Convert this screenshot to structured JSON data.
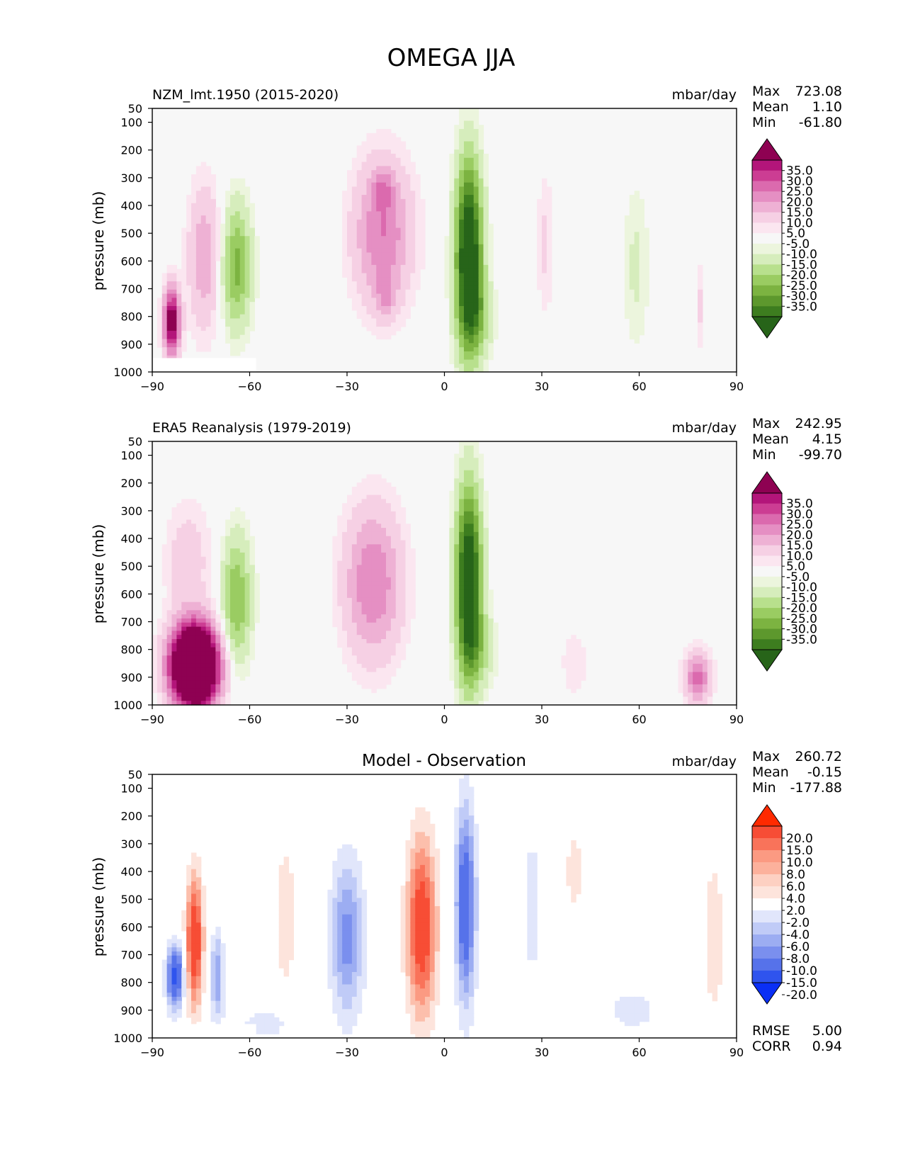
{
  "figure_title": "OMEGA JJA",
  "colors": {
    "seq_pos": [
      "#f7f7f7",
      "#fbe6f0",
      "#f6d0e4",
      "#eeb1d4",
      "#e58fc3",
      "#db6aae",
      "#cc3d93",
      "#b3157a",
      "#8e0152"
    ],
    "seq_neg": [
      "#f7f7f7",
      "#ecf5dd",
      "#d6edbc",
      "#b8e08d",
      "#9acc62",
      "#7cb341",
      "#5d982d",
      "#3d7d1f",
      "#276419"
    ],
    "diff_pos": [
      "#ffffff",
      "#fde4dc",
      "#fcbfac",
      "#fb9a82",
      "#f9735a",
      "#f74d35",
      "#f52d14"
    ],
    "diff_neg": [
      "#ffffff",
      "#e1e6fb",
      "#c0cbf7",
      "#9cadf2",
      "#7a8fee",
      "#5672ea",
      "#2f54ee",
      "#0a2ff5"
    ]
  },
  "chart_data": [
    {
      "type": "heatmap",
      "title": "NZM_lmt.1950 (2015-2020)",
      "units": "mbar/day",
      "xlabel": "",
      "ylabel": "pressure (mb)",
      "x_ticks": [
        "−90",
        "−60",
        "−30",
        "0",
        "30",
        "60",
        "90"
      ],
      "x_tick_values": [
        -90,
        -60,
        -30,
        0,
        30,
        60,
        90
      ],
      "y_ticks": [
        "50",
        "100",
        "200",
        "300",
        "400",
        "500",
        "600",
        "700",
        "800",
        "900",
        "1000"
      ],
      "y_tick_values": [
        50,
        100,
        200,
        300,
        400,
        500,
        600,
        700,
        800,
        900,
        1000
      ],
      "xlim": [
        -90,
        90
      ],
      "ylim": [
        1000,
        50
      ],
      "stats": {
        "max_label": "Max",
        "max": "723.08",
        "mean_label": "Mean",
        "mean": "1.10",
        "min_label": "Min",
        "min": "-61.80"
      },
      "colorbar_labels": [
        "35.0",
        "30.0",
        "25.0",
        "20.0",
        "15.0",
        "10.0",
        "5.0",
        "-5.0",
        "-10.0",
        "-15.0",
        "-20.0",
        "-25.0",
        "-30.0",
        "-35.0"
      ],
      "colorbar_colors": [
        "#8e0152",
        "#b3157a",
        "#cc3d93",
        "#db6aae",
        "#e58fc3",
        "#eeb1d4",
        "#f6d0e4",
        "#fbe6f0",
        "#f7f7f7",
        "#ecf5dd",
        "#d6edbc",
        "#b8e08d",
        "#9acc62",
        "#7cb341",
        "#5d982d",
        "#3d7d1f",
        "#276419"
      ],
      "scheme": "seq",
      "features": [
        {
          "lat": 7.5,
          "p": 580,
          "slat": 4,
          "sp": 330,
          "v": -48
        },
        {
          "lat": 10,
          "p": 800,
          "slat": 5,
          "sp": 140,
          "v": -12
        },
        {
          "lat": -19,
          "p": 500,
          "slat": 9,
          "sp": 260,
          "v": 20
        },
        {
          "lat": -19,
          "p": 340,
          "slat": 3,
          "sp": 70,
          "v": 10
        },
        {
          "lat": -18,
          "p": 730,
          "slat": 3,
          "sp": 80,
          "v": 9
        },
        {
          "lat": -64,
          "p": 620,
          "slat": 4.5,
          "sp": 220,
          "v": -22
        },
        {
          "lat": -74,
          "p": 590,
          "slat": 5,
          "sp": 260,
          "v": 14
        },
        {
          "lat": -84,
          "p": 820,
          "slat": 2.5,
          "sp": 120,
          "v": 42
        },
        {
          "lat": 31,
          "p": 540,
          "slat": 2.5,
          "sp": 260,
          "v": 6
        },
        {
          "lat": 59,
          "p": 620,
          "slat": 4,
          "sp": 300,
          "v": -6
        },
        {
          "lat": 79,
          "p": 760,
          "slat": 1,
          "sp": 160,
          "v": 6
        }
      ],
      "masked_below": {
        "p": 950,
        "from_lat": -90,
        "to_lat": -58
      }
    },
    {
      "type": "heatmap",
      "title": "ERA5 Reanalysis (1979-2019)",
      "units": "mbar/day",
      "xlabel": "",
      "ylabel": "pressure (mb)",
      "x_ticks": [
        "−90",
        "−60",
        "−30",
        "0",
        "30",
        "60",
        "90"
      ],
      "x_tick_values": [
        -90,
        -60,
        -30,
        0,
        30,
        60,
        90
      ],
      "y_ticks": [
        "50",
        "100",
        "200",
        "300",
        "400",
        "500",
        "600",
        "700",
        "800",
        "900",
        "1000"
      ],
      "y_tick_values": [
        50,
        100,
        200,
        300,
        400,
        500,
        600,
        700,
        800,
        900,
        1000
      ],
      "xlim": [
        -90,
        90
      ],
      "ylim": [
        1000,
        50
      ],
      "stats": {
        "max_label": "Max",
        "max": "242.95",
        "mean_label": "Mean",
        "mean": "4.15",
        "min_label": "Min",
        "min": "-99.70"
      },
      "colorbar_labels": [
        "35.0",
        "30.0",
        "25.0",
        "20.0",
        "15.0",
        "10.0",
        "5.0",
        "-5.0",
        "-10.0",
        "-15.0",
        "-20.0",
        "-25.0",
        "-30.0",
        "-35.0"
      ],
      "colorbar_colors": [
        "#8e0152",
        "#b3157a",
        "#cc3d93",
        "#db6aae",
        "#e58fc3",
        "#eeb1d4",
        "#f6d0e4",
        "#fbe6f0",
        "#f7f7f7",
        "#ecf5dd",
        "#d6edbc",
        "#b8e08d",
        "#9acc62",
        "#7cb341",
        "#5d982d",
        "#3d7d1f",
        "#276419"
      ],
      "scheme": "seq",
      "features": [
        {
          "lat": 7.5,
          "p": 560,
          "slat": 3.8,
          "sp": 330,
          "v": -48
        },
        {
          "lat": 11,
          "p": 800,
          "slat": 5,
          "sp": 130,
          "v": -10
        },
        {
          "lat": -22,
          "p": 560,
          "slat": 9,
          "sp": 270,
          "v": 20
        },
        {
          "lat": -64,
          "p": 620,
          "slat": 4.5,
          "sp": 230,
          "v": -20
        },
        {
          "lat": -77,
          "p": 860,
          "slat": 7,
          "sp": 140,
          "v": 90
        },
        {
          "lat": -79,
          "p": 480,
          "slat": 7,
          "sp": 210,
          "v": 8
        },
        {
          "lat": 78,
          "p": 900,
          "slat": 4,
          "sp": 90,
          "v": 22
        },
        {
          "lat": 40,
          "p": 850,
          "slat": 4,
          "sp": 120,
          "v": 5
        }
      ],
      "masked_below": null
    },
    {
      "type": "heatmap",
      "title": "Model - Observation",
      "units": "mbar/day",
      "xlabel": "",
      "ylabel": "pressure (mb)",
      "x_ticks": [
        "−90",
        "−60",
        "−30",
        "0",
        "30",
        "60",
        "90"
      ],
      "x_tick_values": [
        -90,
        -60,
        -30,
        0,
        30,
        60,
        90
      ],
      "y_ticks": [
        "50",
        "100",
        "200",
        "300",
        "400",
        "500",
        "600",
        "700",
        "800",
        "900",
        "1000"
      ],
      "y_tick_values": [
        50,
        100,
        200,
        300,
        400,
        500,
        600,
        700,
        800,
        900,
        1000
      ],
      "xlim": [
        -90,
        90
      ],
      "ylim": [
        1000,
        50
      ],
      "stats": {
        "max_label": "Max",
        "max": "260.72",
        "mean_label": "Mean",
        "mean": "-0.15",
        "min_label": "Min",
        "min": "-177.88"
      },
      "extra_stats": {
        "rmse_label": "RMSE",
        "rmse": "5.00",
        "corr_label": "CORR",
        "corr": "0.94"
      },
      "colorbar_labels": [
        "20.0",
        "15.0",
        "10.0",
        "8.0",
        "6.0",
        "4.0",
        "2.0",
        "-2.0",
        "-4.0",
        "-6.0",
        "-8.0",
        "-10.0",
        "-15.0",
        "-20.0"
      ],
      "colorbar_colors": [
        "#ff2a00",
        "#f74d35",
        "#f9735a",
        "#fb9a82",
        "#fcb19c",
        "#fdd0c2",
        "#fde4dc",
        "#ffffff",
        "#e1e6fb",
        "#c0cbf7",
        "#9cadf2",
        "#7a8fee",
        "#5672ea",
        "#2f54ee",
        "#0a2ff5"
      ],
      "scheme": "diff",
      "features": [
        {
          "lat": 6.5,
          "p": 520,
          "slat": 3,
          "sp": 340,
          "v": -14
        },
        {
          "lat": -7,
          "p": 600,
          "slat": 4.5,
          "sp": 320,
          "v": 13
        },
        {
          "lat": -30,
          "p": 640,
          "slat": 5,
          "sp": 280,
          "v": -9
        },
        {
          "lat": -77,
          "p": 650,
          "slat": 2.5,
          "sp": 230,
          "v": 14
        },
        {
          "lat": -83,
          "p": 780,
          "slat": 2.5,
          "sp": 110,
          "v": -16
        },
        {
          "lat": -70,
          "p": 780,
          "slat": 2,
          "sp": 160,
          "v": -8
        },
        {
          "lat": -49,
          "p": 560,
          "slat": 3,
          "sp": 260,
          "v": 4
        },
        {
          "lat": 40,
          "p": 400,
          "slat": 3,
          "sp": 180,
          "v": 3
        },
        {
          "lat": 83,
          "p": 640,
          "slat": 3,
          "sp": 280,
          "v": 4
        },
        {
          "lat": 58,
          "p": 900,
          "slat": 12,
          "sp": 110,
          "v": -2.5
        },
        {
          "lat": -55,
          "p": 950,
          "slat": 10,
          "sp": 60,
          "v": -3
        },
        {
          "lat": 27,
          "p": 520,
          "slat": 2.5,
          "sp": 340,
          "v": -3
        }
      ],
      "masked_below": {
        "p": 950,
        "from_lat": -90,
        "to_lat": -58
      }
    }
  ]
}
